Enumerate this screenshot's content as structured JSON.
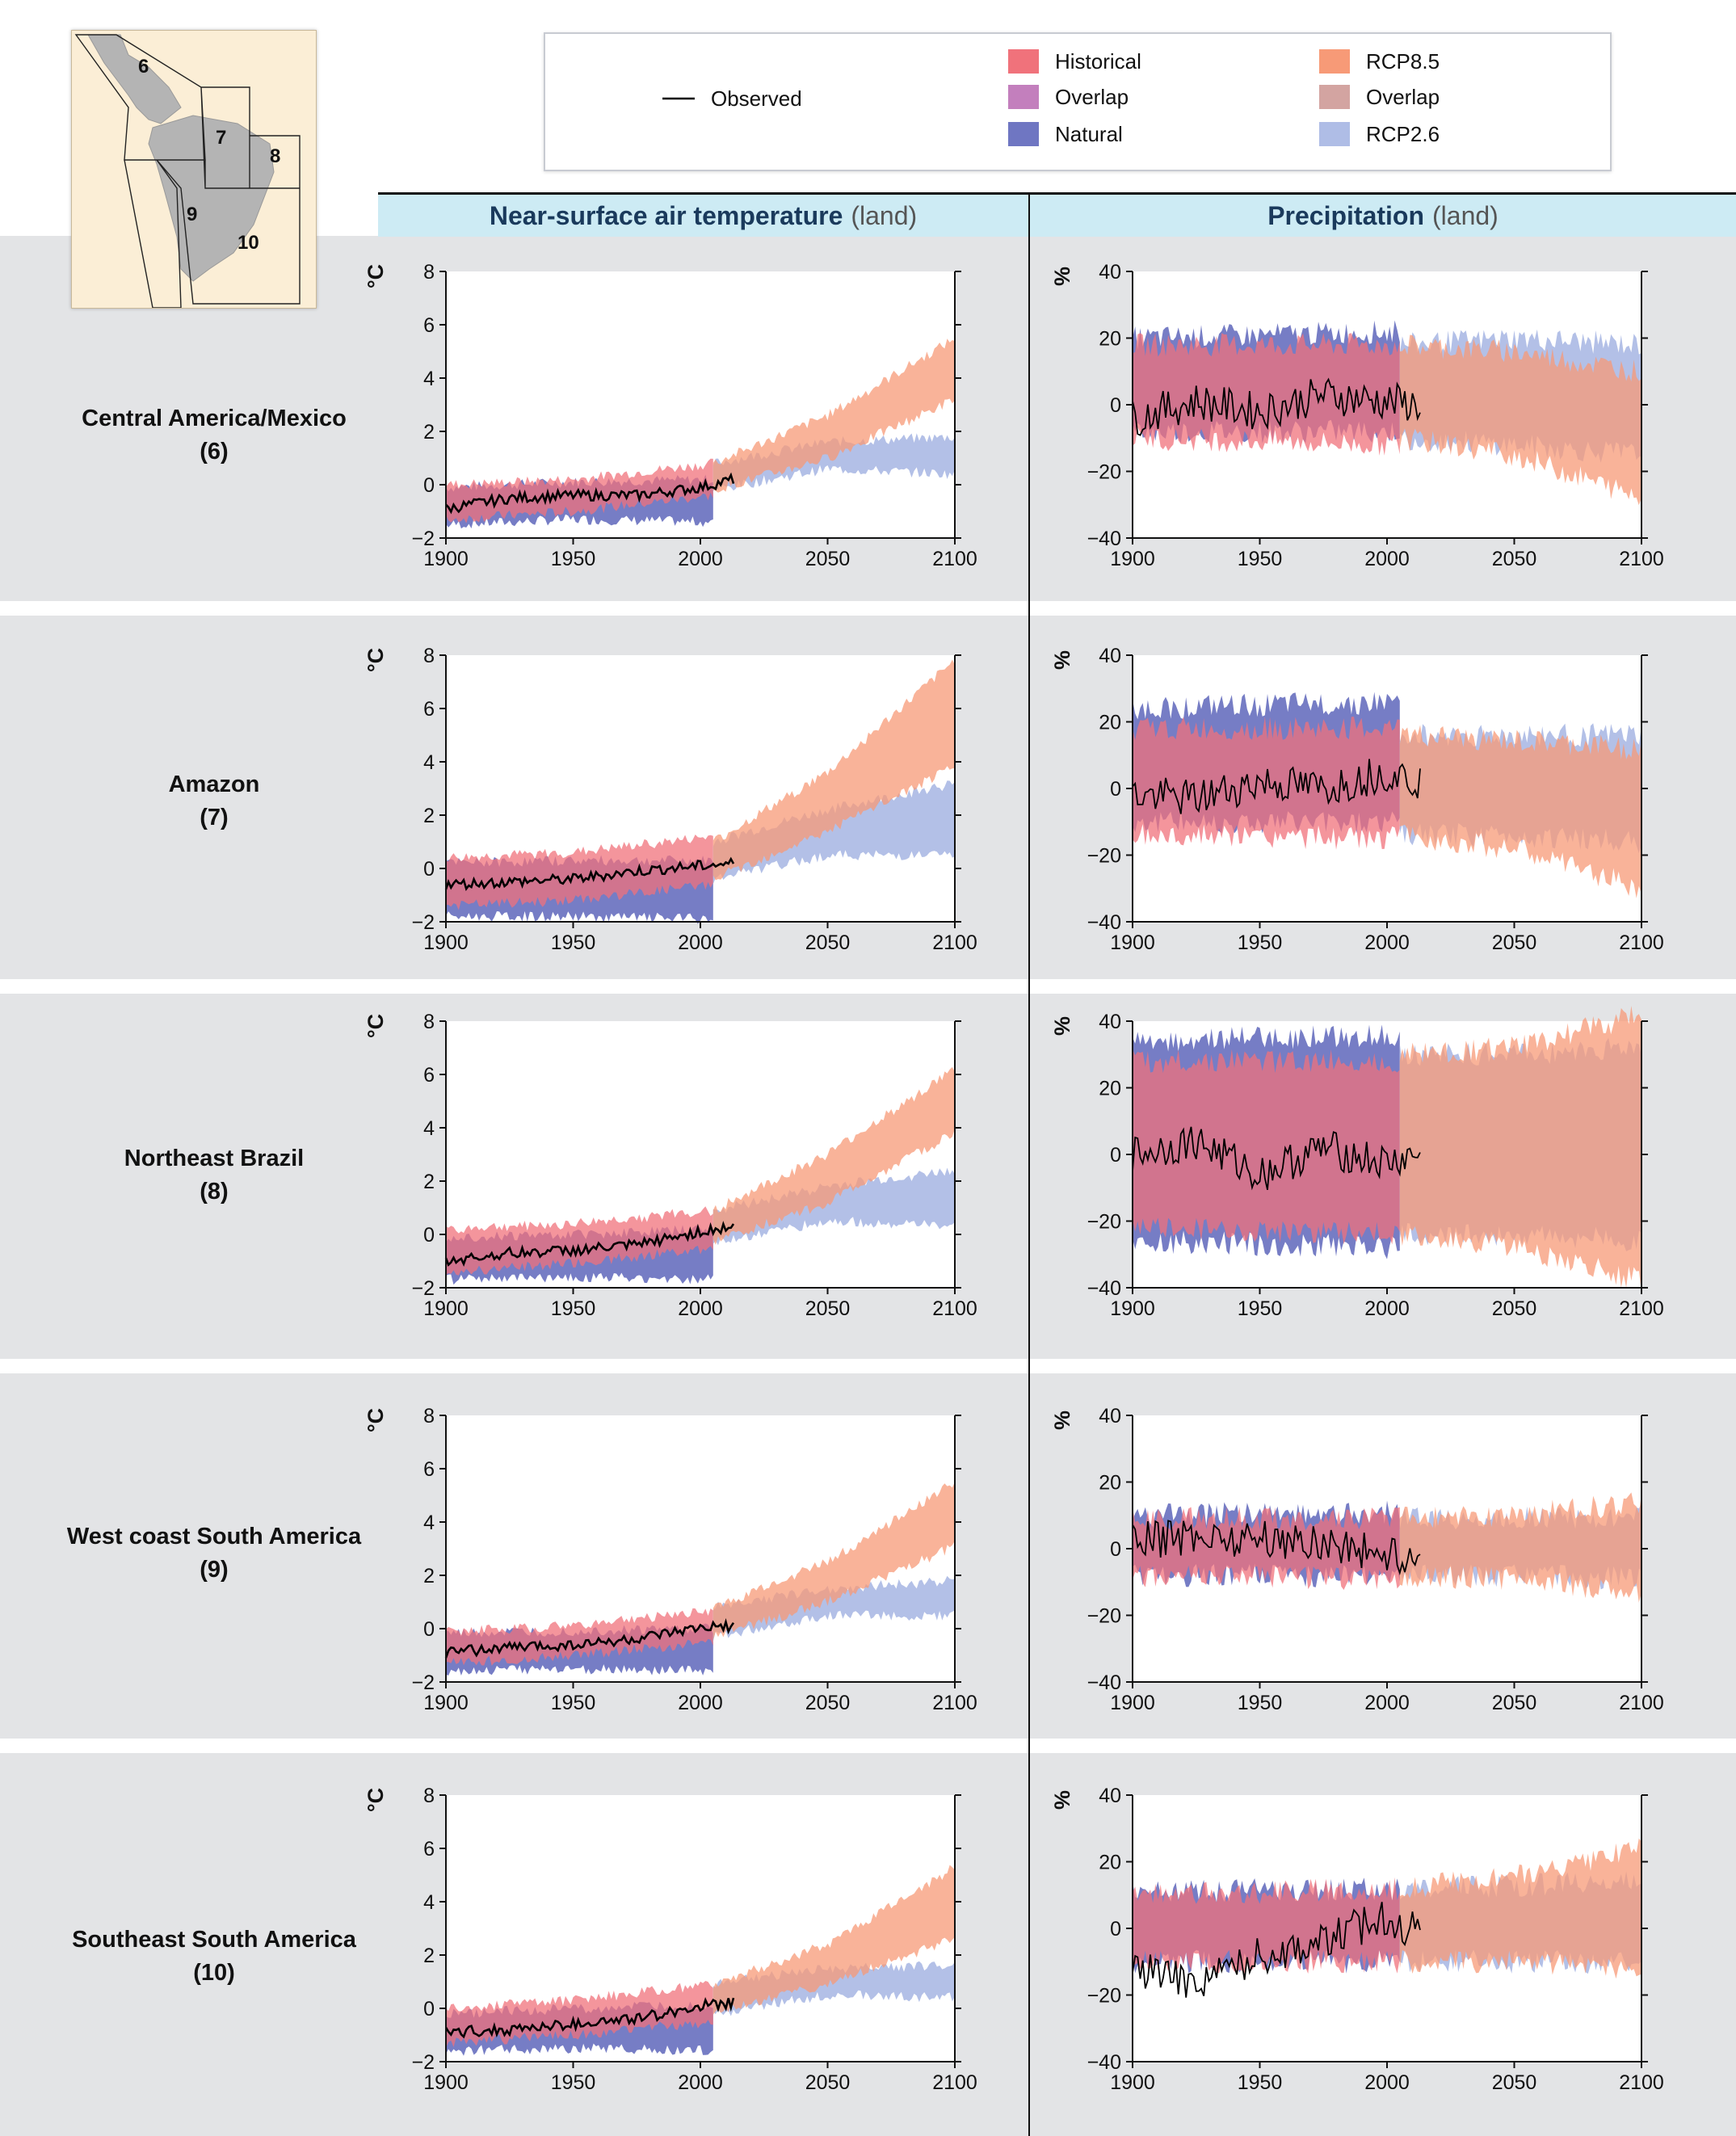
{
  "legend": {
    "items": [
      {
        "label": "Observed",
        "type": "line",
        "color": "#000000"
      },
      {
        "label": "Historical",
        "type": "band",
        "color": "#f0727b"
      },
      {
        "label": "Overlap",
        "type": "band",
        "color": "#c37fbd"
      },
      {
        "label": "Natural",
        "type": "band",
        "color": "#6f76c2"
      },
      {
        "label": "RCP8.5",
        "type": "band",
        "color": "#f79a77"
      },
      {
        "label": "Overlap",
        "type": "band",
        "color": "#d3a4a1"
      },
      {
        "label": "RCP2.6",
        "type": "band",
        "color": "#afbde6"
      }
    ]
  },
  "columns": {
    "left": {
      "title": "Near-surface air temperature",
      "subtitle": "(land)"
    },
    "right": {
      "title": "Precipitation",
      "subtitle": "(land)"
    }
  },
  "map": {
    "region_numbers": [
      "6",
      "7",
      "8",
      "9",
      "10"
    ]
  },
  "rows": [
    {
      "name": "Central America/Mexico",
      "number": "(6)"
    },
    {
      "name": "Amazon",
      "number": "(7)"
    },
    {
      "name": "Northeast Brazil",
      "number": "(8)"
    },
    {
      "name": "West coast South America",
      "number": "(9)"
    },
    {
      "name": "Southeast South America",
      "number": "(10)"
    }
  ],
  "chart_data": [
    {
      "panel": "temperature-6",
      "type": "area",
      "ylabel": "°C",
      "xlim": [
        1900,
        2100
      ],
      "ylim": [
        -2,
        8
      ],
      "x_ticks": [
        1900,
        1950,
        2000,
        2050,
        2100
      ],
      "y_ticks": [
        -2,
        0,
        2,
        4,
        6,
        8
      ],
      "historical_band": {
        "x": [
          1900,
          1950,
          2005
        ],
        "low": [
          -1.3,
          -1.0,
          -0.4
        ],
        "high": [
          0.0,
          0.2,
          0.8
        ]
      },
      "natural_band": {
        "x": [
          1900,
          1950,
          2005
        ],
        "low": [
          -1.5,
          -1.3,
          -1.4
        ],
        "high": [
          -0.1,
          0.1,
          0.2
        ]
      },
      "rcp85_band": {
        "x": [
          2005,
          2050,
          2100
        ],
        "low": [
          -0.2,
          1.0,
          3.2
        ],
        "high": [
          0.8,
          2.6,
          5.5
        ]
      },
      "rcp26_band": {
        "x": [
          2005,
          2050,
          2100
        ],
        "low": [
          -0.2,
          0.6,
          0.4
        ],
        "high": [
          0.8,
          1.6,
          1.8
        ]
      },
      "observed": {
        "x": [
          1900,
          1925,
          1950,
          1975,
          2000,
          2013
        ],
        "y": [
          -0.9,
          -0.5,
          -0.4,
          -0.4,
          -0.1,
          0.2
        ]
      }
    },
    {
      "panel": "precipitation-6",
      "type": "area",
      "ylabel": "%",
      "xlim": [
        1900,
        2100
      ],
      "ylim": [
        -40,
        40
      ],
      "x_ticks": [
        1900,
        1950,
        2000,
        2050,
        2100
      ],
      "y_ticks": [
        -40,
        -20,
        0,
        20,
        40
      ],
      "historical_band": {
        "x": [
          1900,
          2005
        ],
        "low": [
          -10,
          -12
        ],
        "high": [
          18,
          18
        ]
      },
      "natural_band": {
        "x": [
          1900,
          2005
        ],
        "low": [
          -8,
          -8
        ],
        "high": [
          20,
          22
        ]
      },
      "rcp85_band": {
        "x": [
          2005,
          2050,
          2100
        ],
        "low": [
          -10,
          -15,
          -28
        ],
        "high": [
          18,
          16,
          10
        ]
      },
      "rcp26_band": {
        "x": [
          2005,
          2050,
          2100
        ],
        "low": [
          -10,
          -12,
          -15
        ],
        "high": [
          18,
          20,
          18
        ]
      },
      "observed": {
        "x": [
          1900,
          1925,
          1950,
          1975,
          2000,
          2013
        ],
        "y": [
          -4,
          1,
          -2,
          3,
          1,
          0
        ]
      }
    },
    {
      "panel": "temperature-7",
      "type": "area",
      "ylabel": "°C",
      "xlim": [
        1900,
        2100
      ],
      "ylim": [
        -2,
        8
      ],
      "x_ticks": [
        1900,
        1950,
        2000,
        2050,
        2100
      ],
      "y_ticks": [
        -2,
        0,
        2,
        4,
        6,
        8
      ],
      "historical_band": {
        "x": [
          1900,
          1950,
          2005
        ],
        "low": [
          -1.4,
          -1.2,
          -0.6
        ],
        "high": [
          0.4,
          0.6,
          1.2
        ]
      },
      "natural_band": {
        "x": [
          1900,
          1950,
          2005
        ],
        "low": [
          -1.8,
          -1.8,
          -1.9
        ],
        "high": [
          0.2,
          0.3,
          0.3
        ]
      },
      "rcp85_band": {
        "x": [
          2005,
          2050,
          2100
        ],
        "low": [
          -0.4,
          1.4,
          3.8
        ],
        "high": [
          1.0,
          3.6,
          7.8
        ]
      },
      "rcp26_band": {
        "x": [
          2005,
          2050,
          2100
        ],
        "low": [
          -0.4,
          0.5,
          0.5
        ],
        "high": [
          1.0,
          2.2,
          3.2
        ]
      },
      "observed": {
        "x": [
          1900,
          1925,
          1950,
          1975,
          2000,
          2013
        ],
        "y": [
          -0.6,
          -0.5,
          -0.4,
          -0.1,
          0.1,
          0.2
        ]
      }
    },
    {
      "panel": "precipitation-7",
      "type": "area",
      "ylabel": "%",
      "xlim": [
        1900,
        2100
      ],
      "ylim": [
        -40,
        40
      ],
      "x_ticks": [
        1900,
        1950,
        2000,
        2050,
        2100
      ],
      "y_ticks": [
        -40,
        -20,
        0,
        20,
        40
      ],
      "historical_band": {
        "x": [
          1900,
          2005
        ],
        "low": [
          -14,
          -15
        ],
        "high": [
          18,
          18
        ]
      },
      "natural_band": {
        "x": [
          1900,
          2005
        ],
        "low": [
          -10,
          -10
        ],
        "high": [
          24,
          26
        ]
      },
      "rcp85_band": {
        "x": [
          2005,
          2050,
          2100
        ],
        "low": [
          -14,
          -18,
          -30
        ],
        "high": [
          16,
          14,
          12
        ]
      },
      "rcp26_band": {
        "x": [
          2005,
          2050,
          2100
        ],
        "low": [
          -14,
          -14,
          -16
        ],
        "high": [
          16,
          16,
          16
        ]
      },
      "observed": {
        "x": [
          1900,
          1925,
          1950,
          1975,
          2000,
          2013
        ],
        "y": [
          -2,
          -3,
          2,
          0,
          5,
          2
        ]
      }
    },
    {
      "panel": "temperature-8",
      "type": "area",
      "ylabel": "°C",
      "xlim": [
        1900,
        2100
      ],
      "ylim": [
        -2,
        8
      ],
      "x_ticks": [
        1900,
        1950,
        2000,
        2050,
        2100
      ],
      "y_ticks": [
        -2,
        0,
        2,
        4,
        6,
        8
      ],
      "historical_band": {
        "x": [
          1900,
          1950,
          2005
        ],
        "low": [
          -1.4,
          -1.1,
          -0.5
        ],
        "high": [
          0.2,
          0.4,
          0.9
        ]
      },
      "natural_band": {
        "x": [
          1900,
          1950,
          2005
        ],
        "low": [
          -1.7,
          -1.6,
          -1.7
        ],
        "high": [
          -0.1,
          0.0,
          0.2
        ]
      },
      "rcp85_band": {
        "x": [
          2005,
          2050,
          2100
        ],
        "low": [
          -0.3,
          1.2,
          3.8
        ],
        "high": [
          0.9,
          3.0,
          6.2
        ]
      },
      "rcp26_band": {
        "x": [
          2005,
          2050,
          2100
        ],
        "low": [
          -0.3,
          0.5,
          0.3
        ],
        "high": [
          0.9,
          1.8,
          2.4
        ]
      },
      "observed": {
        "x": [
          1900,
          1925,
          1950,
          1975,
          2000,
          2013
        ],
        "y": [
          -1.0,
          -0.7,
          -0.6,
          -0.4,
          0.1,
          0.3
        ]
      }
    },
    {
      "panel": "precipitation-8",
      "type": "area",
      "ylabel": "%",
      "xlim": [
        1900,
        2100
      ],
      "ylim": [
        -40,
        40
      ],
      "x_ticks": [
        1900,
        1950,
        2000,
        2050,
        2100
      ],
      "y_ticks": [
        -40,
        -20,
        0,
        20,
        40
      ],
      "historical_band": {
        "x": [
          1900,
          2005
        ],
        "low": [
          -22,
          -24
        ],
        "high": [
          28,
          28
        ]
      },
      "natural_band": {
        "x": [
          1900,
          2005
        ],
        "low": [
          -26,
          -28
        ],
        "high": [
          34,
          36
        ]
      },
      "rcp85_band": {
        "x": [
          2005,
          2050,
          2100
        ],
        "low": [
          -24,
          -28,
          -38
        ],
        "high": [
          30,
          32,
          42
        ]
      },
      "rcp26_band": {
        "x": [
          2005,
          2050,
          2100
        ],
        "low": [
          -24,
          -24,
          -26
        ],
        "high": [
          30,
          30,
          32
        ]
      },
      "observed": {
        "x": [
          1900,
          1925,
          1950,
          1975,
          2000,
          2013
        ],
        "y": [
          0,
          4,
          -6,
          2,
          -3,
          0
        ]
      }
    },
    {
      "panel": "temperature-9",
      "type": "area",
      "ylabel": "°C",
      "xlim": [
        1900,
        2100
      ],
      "ylim": [
        -2,
        8
      ],
      "x_ticks": [
        1900,
        1950,
        2000,
        2050,
        2100
      ],
      "y_ticks": [
        -2,
        0,
        2,
        4,
        6,
        8
      ],
      "historical_band": {
        "x": [
          1900,
          1950,
          2005
        ],
        "low": [
          -1.3,
          -1.0,
          -0.5
        ],
        "high": [
          -0.1,
          0.1,
          0.7
        ]
      },
      "natural_band": {
        "x": [
          1900,
          1950,
          2005
        ],
        "low": [
          -1.6,
          -1.5,
          -1.6
        ],
        "high": [
          -0.2,
          -0.1,
          0.0
        ]
      },
      "rcp85_band": {
        "x": [
          2005,
          2050,
          2100
        ],
        "low": [
          -0.3,
          1.0,
          3.1
        ],
        "high": [
          0.8,
          2.5,
          5.5
        ]
      },
      "rcp26_band": {
        "x": [
          2005,
          2050,
          2100
        ],
        "low": [
          -0.3,
          0.5,
          0.5
        ],
        "high": [
          0.8,
          1.5,
          1.8
        ]
      },
      "observed": {
        "x": [
          1900,
          1925,
          1950,
          1975,
          2000,
          2013
        ],
        "y": [
          -0.9,
          -0.7,
          -0.6,
          -0.4,
          0.0,
          0.1
        ]
      }
    },
    {
      "panel": "precipitation-9",
      "type": "area",
      "ylabel": "%",
      "xlim": [
        1900,
        2100
      ],
      "ylim": [
        -40,
        40
      ],
      "x_ticks": [
        1900,
        1950,
        2000,
        2050,
        2100
      ],
      "y_ticks": [
        -40,
        -20,
        0,
        20,
        40
      ],
      "historical_band": {
        "x": [
          1900,
          2005
        ],
        "low": [
          -8,
          -9
        ],
        "high": [
          9,
          9
        ]
      },
      "natural_band": {
        "x": [
          1900,
          2005
        ],
        "low": [
          -8,
          -8
        ],
        "high": [
          10,
          11
        ]
      },
      "rcp85_band": {
        "x": [
          2005,
          2050,
          2100
        ],
        "low": [
          -8,
          -9,
          -13
        ],
        "high": [
          9,
          10,
          14
        ]
      },
      "rcp26_band": {
        "x": [
          2005,
          2050,
          2100
        ],
        "low": [
          -8,
          -8,
          -9
        ],
        "high": [
          9,
          9,
          10
        ]
      },
      "observed": {
        "x": [
          1900,
          1925,
          1950,
          1975,
          2000,
          2013
        ],
        "y": [
          2,
          4,
          3,
          2,
          -2,
          -3
        ]
      }
    },
    {
      "panel": "temperature-10",
      "type": "area",
      "ylabel": "°C",
      "xlim": [
        1900,
        2100
      ],
      "ylim": [
        -2,
        8
      ],
      "x_ticks": [
        1900,
        1950,
        2000,
        2050,
        2100
      ],
      "y_ticks": [
        -2,
        0,
        2,
        4,
        6,
        8
      ],
      "historical_band": {
        "x": [
          1900,
          1950,
          2005
        ],
        "low": [
          -1.3,
          -1.0,
          -0.5
        ],
        "high": [
          0.0,
          0.3,
          0.9
        ]
      },
      "natural_band": {
        "x": [
          1900,
          1950,
          2005
        ],
        "low": [
          -1.6,
          -1.5,
          -1.6
        ],
        "high": [
          -0.2,
          0.0,
          0.1
        ]
      },
      "rcp85_band": {
        "x": [
          2005,
          2050,
          2100
        ],
        "low": [
          -0.2,
          0.9,
          2.6
        ],
        "high": [
          0.9,
          2.4,
          5.3
        ]
      },
      "rcp26_band": {
        "x": [
          2005,
          2050,
          2100
        ],
        "low": [
          -0.2,
          0.5,
          0.4
        ],
        "high": [
          0.9,
          1.5,
          1.6
        ]
      },
      "observed": {
        "x": [
          1900,
          1925,
          1950,
          1975,
          2000,
          2013
        ],
        "y": [
          -0.9,
          -0.8,
          -0.6,
          -0.4,
          0.1,
          0.2
        ]
      }
    },
    {
      "panel": "precipitation-10",
      "type": "area",
      "ylabel": "%",
      "xlim": [
        1900,
        2100
      ],
      "ylim": [
        -40,
        40
      ],
      "x_ticks": [
        1900,
        1950,
        2000,
        2050,
        2100
      ],
      "y_ticks": [
        -40,
        -20,
        0,
        20,
        40
      ],
      "historical_band": {
        "x": [
          1900,
          2005
        ],
        "low": [
          -10,
          -10
        ],
        "high": [
          10,
          12
        ]
      },
      "natural_band": {
        "x": [
          1900,
          2005
        ],
        "low": [
          -10,
          -10
        ],
        "high": [
          11,
          12
        ]
      },
      "rcp85_band": {
        "x": [
          2005,
          2050,
          2100
        ],
        "low": [
          -10,
          -10,
          -12
        ],
        "high": [
          12,
          16,
          24
        ]
      },
      "rcp26_band": {
        "x": [
          2005,
          2050,
          2100
        ],
        "low": [
          -10,
          -10,
          -10
        ],
        "high": [
          12,
          13,
          14
        ]
      },
      "observed": {
        "x": [
          1900,
          1925,
          1950,
          1975,
          2000,
          2013
        ],
        "y": [
          -12,
          -16,
          -8,
          -4,
          4,
          -2
        ]
      }
    }
  ]
}
